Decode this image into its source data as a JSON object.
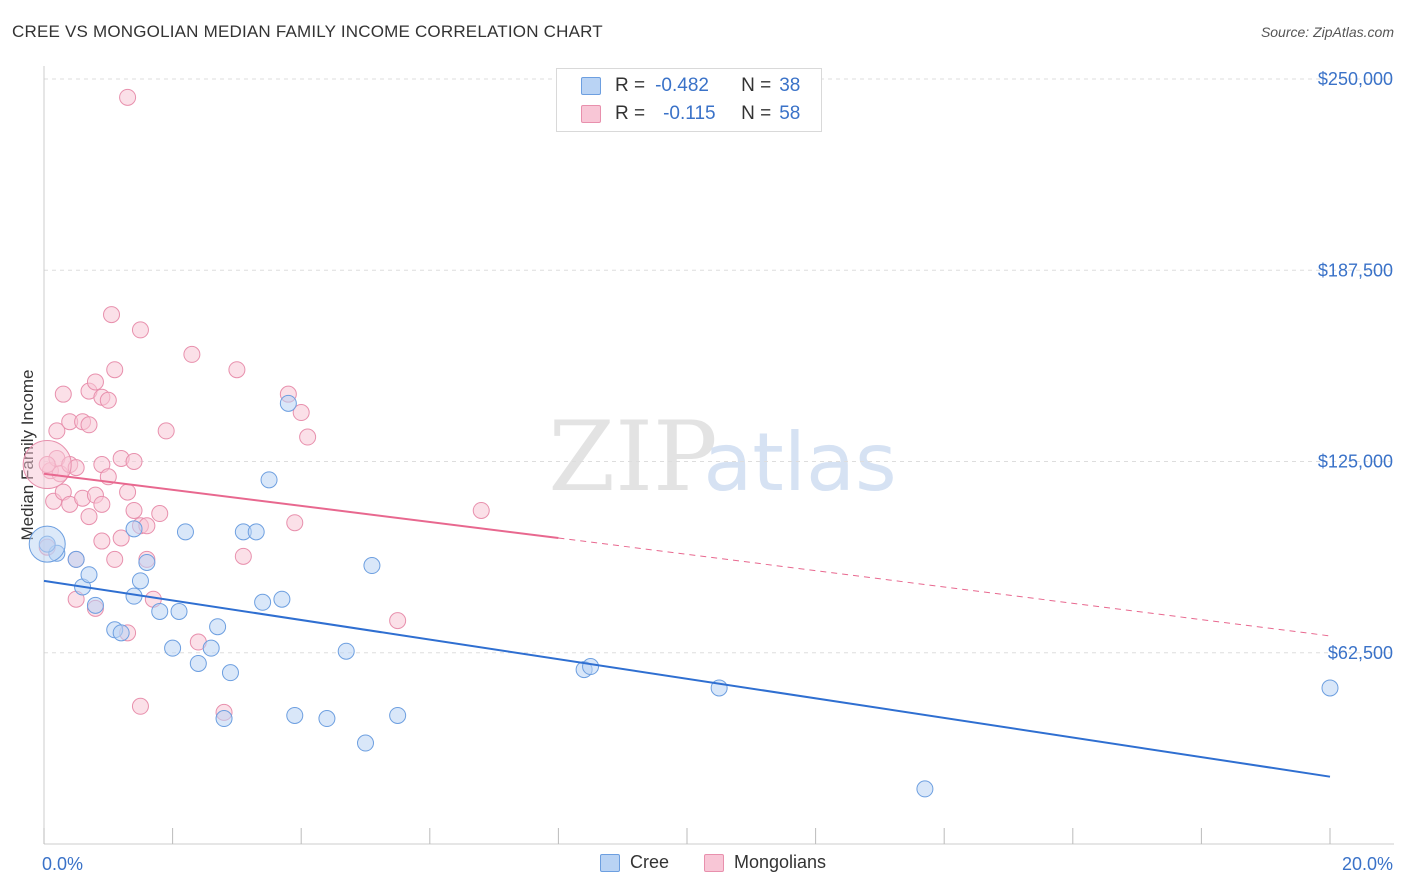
{
  "title": "CREE VS MONGOLIAN MEDIAN FAMILY INCOME CORRELATION CHART",
  "source": "Source: ZipAtlas.com",
  "legend": [
    {
      "r_label": "R =",
      "r_value": "-0.482",
      "n_label": "N =",
      "n_value": "38"
    },
    {
      "r_label": "R =",
      "r_value": "-0.115",
      "n_label": "N =",
      "n_value": "58"
    }
  ],
  "colors": {
    "cree_fill": "#b9d3f4",
    "cree_stroke": "#6d9fe0",
    "cree_line": "#2f6fd1",
    "mong_fill": "#f8c6d6",
    "mong_stroke": "#e890ad",
    "mong_line": "#e8688f",
    "axis_text": "#3a72c8",
    "grid": "#dddddd"
  },
  "chart_data": {
    "type": "scatter",
    "title": "CREE VS MONGOLIAN MEDIAN FAMILY INCOME CORRELATION CHART",
    "xlabel": "",
    "ylabel": "Median Family Income",
    "xlim": [
      0,
      20
    ],
    "ylim": [
      0,
      250000
    ],
    "x_tick_labels": [
      "0.0%",
      "20.0%"
    ],
    "y_tick_values": [
      62500,
      125000,
      187500,
      250000
    ],
    "y_tick_labels": [
      "$62,500",
      "$125,000",
      "$187,500",
      "$250,000"
    ],
    "watermark": {
      "left": "ZIP",
      "right": "atlas"
    },
    "series": [
      {
        "name": "Cree",
        "r": -0.482,
        "n": 38,
        "trend": {
          "x": [
            0,
            20
          ],
          "y": [
            86000,
            22000
          ]
        },
        "points": [
          {
            "x": 0.2,
            "y": 95000
          },
          {
            "x": 0.5,
            "y": 93000
          },
          {
            "x": 0.6,
            "y": 84000
          },
          {
            "x": 0.7,
            "y": 88000
          },
          {
            "x": 0.8,
            "y": 78000
          },
          {
            "x": 1.1,
            "y": 70000
          },
          {
            "x": 1.2,
            "y": 69000
          },
          {
            "x": 1.4,
            "y": 103000
          },
          {
            "x": 1.4,
            "y": 81000
          },
          {
            "x": 1.5,
            "y": 86000
          },
          {
            "x": 1.6,
            "y": 92000
          },
          {
            "x": 1.8,
            "y": 76000
          },
          {
            "x": 2.0,
            "y": 64000
          },
          {
            "x": 2.1,
            "y": 76000
          },
          {
            "x": 2.2,
            "y": 102000
          },
          {
            "x": 2.4,
            "y": 59000
          },
          {
            "x": 2.6,
            "y": 64000
          },
          {
            "x": 2.7,
            "y": 71000
          },
          {
            "x": 2.8,
            "y": 41000
          },
          {
            "x": 2.9,
            "y": 56000
          },
          {
            "x": 3.1,
            "y": 102000
          },
          {
            "x": 3.3,
            "y": 102000
          },
          {
            "x": 3.4,
            "y": 79000
          },
          {
            "x": 3.5,
            "y": 119000
          },
          {
            "x": 3.7,
            "y": 80000
          },
          {
            "x": 3.8,
            "y": 144000
          },
          {
            "x": 3.9,
            "y": 42000
          },
          {
            "x": 4.4,
            "y": 41000
          },
          {
            "x": 4.7,
            "y": 63000
          },
          {
            "x": 5.0,
            "y": 33000
          },
          {
            "x": 5.1,
            "y": 91000
          },
          {
            "x": 5.5,
            "y": 42000
          },
          {
            "x": 8.4,
            "y": 57000
          },
          {
            "x": 8.5,
            "y": 58000
          },
          {
            "x": 10.5,
            "y": 51000
          },
          {
            "x": 13.7,
            "y": 18000
          },
          {
            "x": 20.0,
            "y": 51000
          },
          {
            "x": 0.05,
            "y": 98000
          }
        ]
      },
      {
        "name": "Mongolians",
        "r": -0.115,
        "n": 58,
        "trend": {
          "x": [
            0,
            8
          ],
          "y": [
            121000,
            100000
          ]
        },
        "trend_dashed": {
          "x": [
            8,
            20
          ],
          "y": [
            100000,
            68000
          ]
        },
        "points": [
          {
            "x": 0.1,
            "y": 122000
          },
          {
            "x": 0.15,
            "y": 112000
          },
          {
            "x": 0.2,
            "y": 126000
          },
          {
            "x": 0.25,
            "y": 121000
          },
          {
            "x": 0.2,
            "y": 135000
          },
          {
            "x": 0.3,
            "y": 115000
          },
          {
            "x": 0.3,
            "y": 147000
          },
          {
            "x": 0.4,
            "y": 124000
          },
          {
            "x": 0.4,
            "y": 111000
          },
          {
            "x": 0.4,
            "y": 138000
          },
          {
            "x": 0.5,
            "y": 80000
          },
          {
            "x": 0.5,
            "y": 123000
          },
          {
            "x": 0.6,
            "y": 113000
          },
          {
            "x": 0.5,
            "y": 93000
          },
          {
            "x": 0.6,
            "y": 138000
          },
          {
            "x": 0.7,
            "y": 148000
          },
          {
            "x": 0.7,
            "y": 137000
          },
          {
            "x": 0.7,
            "y": 107000
          },
          {
            "x": 0.8,
            "y": 151000
          },
          {
            "x": 0.8,
            "y": 114000
          },
          {
            "x": 0.8,
            "y": 77000
          },
          {
            "x": 0.9,
            "y": 146000
          },
          {
            "x": 0.9,
            "y": 99000
          },
          {
            "x": 0.9,
            "y": 111000
          },
          {
            "x": 0.9,
            "y": 124000
          },
          {
            "x": 1.0,
            "y": 120000
          },
          {
            "x": 1.0,
            "y": 145000
          },
          {
            "x": 1.05,
            "y": 173000
          },
          {
            "x": 1.1,
            "y": 93000
          },
          {
            "x": 1.1,
            "y": 155000
          },
          {
            "x": 1.2,
            "y": 126000
          },
          {
            "x": 1.2,
            "y": 100000
          },
          {
            "x": 1.3,
            "y": 115000
          },
          {
            "x": 1.3,
            "y": 69000
          },
          {
            "x": 1.3,
            "y": 244000
          },
          {
            "x": 1.4,
            "y": 125000
          },
          {
            "x": 1.4,
            "y": 109000
          },
          {
            "x": 1.5,
            "y": 104000
          },
          {
            "x": 1.5,
            "y": 168000
          },
          {
            "x": 1.5,
            "y": 45000
          },
          {
            "x": 1.6,
            "y": 93000
          },
          {
            "x": 1.6,
            "y": 104000
          },
          {
            "x": 1.7,
            "y": 80000
          },
          {
            "x": 1.8,
            "y": 108000
          },
          {
            "x": 1.9,
            "y": 135000
          },
          {
            "x": 2.3,
            "y": 160000
          },
          {
            "x": 2.4,
            "y": 66000
          },
          {
            "x": 2.8,
            "y": 43000
          },
          {
            "x": 3.0,
            "y": 155000
          },
          {
            "x": 3.1,
            "y": 94000
          },
          {
            "x": 3.8,
            "y": 147000
          },
          {
            "x": 3.9,
            "y": 105000
          },
          {
            "x": 4.0,
            "y": 141000
          },
          {
            "x": 4.1,
            "y": 133000
          },
          {
            "x": 5.5,
            "y": 73000
          },
          {
            "x": 6.8,
            "y": 109000
          },
          {
            "x": 0.05,
            "y": 124000
          },
          {
            "x": 0.05,
            "y": 97000
          }
        ]
      }
    ]
  }
}
